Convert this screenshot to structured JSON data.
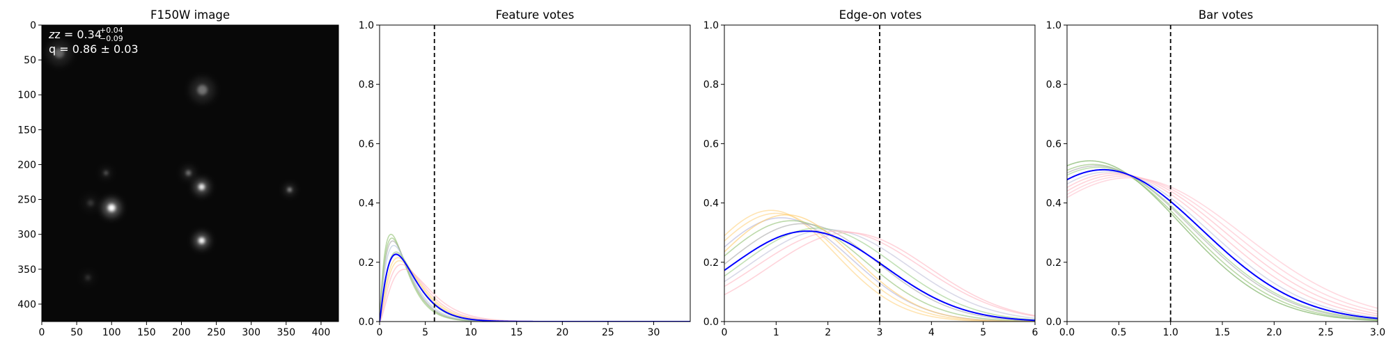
{
  "chart_data": [
    {
      "type": "image",
      "title": "F150W image",
      "annotation": {
        "z_main": "z = 0.34",
        "z_sup": "+0.04",
        "z_sub": "−0.09",
        "q_text": "q = 0.86 ± 0.03"
      },
      "xlim": [
        0,
        425
      ],
      "ylim": [
        425,
        0
      ],
      "x_ticks": [
        "0",
        "50",
        "100",
        "150",
        "200",
        "250",
        "300",
        "350",
        "400"
      ],
      "y_ticks": [
        "0",
        "50",
        "100",
        "150",
        "200",
        "250",
        "300",
        "350",
        "400"
      ],
      "sources": [
        {
          "x": 100,
          "y": 262,
          "brightness": 1.0,
          "size": 6
        },
        {
          "x": 229,
          "y": 232,
          "brightness": 0.9,
          "size": 5
        },
        {
          "x": 229,
          "y": 309,
          "brightness": 1.0,
          "size": 5
        },
        {
          "x": 355,
          "y": 236,
          "brightness": 0.65,
          "size": 3
        },
        {
          "x": 210,
          "y": 212,
          "brightness": 0.4,
          "size": 4
        },
        {
          "x": 92,
          "y": 212,
          "brightness": 0.35,
          "size": 3
        },
        {
          "x": 230,
          "y": 93,
          "brightness": 0.35,
          "size": 8
        },
        {
          "x": 25,
          "y": 40,
          "brightness": 0.3,
          "size": 8
        },
        {
          "x": 66,
          "y": 362,
          "brightness": 0.15,
          "size": 4
        },
        {
          "x": 70,
          "y": 255,
          "brightness": 0.15,
          "size": 5
        }
      ]
    },
    {
      "type": "line",
      "title": "Feature votes",
      "xlim": [
        0,
        34
      ],
      "ylim": [
        0,
        1.0
      ],
      "x_ticks": [
        0,
        5,
        10,
        15,
        20,
        25,
        30
      ],
      "y_ticks": [
        0.0,
        0.2,
        0.4,
        0.6,
        0.8,
        1.0
      ],
      "vline": 6,
      "model": "gamma",
      "mean": {
        "k": 2.2,
        "theta": 1.5,
        "color": "#0000ff"
      },
      "samples": [
        {
          "k": 2.0,
          "theta": 1.25,
          "color": "#8fbf6f"
        },
        {
          "k": 2.05,
          "theta": 1.28,
          "color": "#8fbf6f"
        },
        {
          "k": 2.1,
          "theta": 1.3,
          "color": "#a9a9a9"
        },
        {
          "k": 2.15,
          "theta": 1.35,
          "color": "#b0c4de"
        },
        {
          "k": 2.25,
          "theta": 1.45,
          "color": "#c0c0d8"
        },
        {
          "k": 2.35,
          "theta": 1.5,
          "color": "#ffd27f"
        },
        {
          "k": 2.4,
          "theta": 1.55,
          "color": "#ffd27f"
        },
        {
          "k": 2.5,
          "theta": 1.6,
          "color": "#ffb6c1"
        },
        {
          "k": 2.6,
          "theta": 1.7,
          "color": "#ffb6c1"
        },
        {
          "k": 2.3,
          "theta": 1.4,
          "color": "#9acd85"
        }
      ]
    },
    {
      "type": "line",
      "title": "Edge-on votes",
      "xlim": [
        0,
        6
      ],
      "ylim": [
        0,
        1.0
      ],
      "x_ticks": [
        0,
        1,
        2,
        3,
        4,
        5,
        6
      ],
      "y_ticks": [
        0.0,
        0.2,
        0.4,
        0.6,
        0.8,
        1.0
      ],
      "vline": 3,
      "model": "gauss",
      "mean": {
        "mu": 1.6,
        "sigma": 1.5,
        "peak": 0.305,
        "color": "#0000ff"
      },
      "samples": [
        {
          "mu": 0.9,
          "sigma": 1.25,
          "peak": 0.375,
          "color": "#ffd27f"
        },
        {
          "mu": 1.0,
          "sigma": 1.3,
          "peak": 0.365,
          "color": "#ffd27f"
        },
        {
          "mu": 1.1,
          "sigma": 1.35,
          "peak": 0.35,
          "color": "#b0b0d8"
        },
        {
          "mu": 1.3,
          "sigma": 1.4,
          "peak": 0.34,
          "color": "#8fbf6f"
        },
        {
          "mu": 1.5,
          "sigma": 1.45,
          "peak": 0.33,
          "color": "#a9a9a9"
        },
        {
          "mu": 1.8,
          "sigma": 1.5,
          "peak": 0.315,
          "color": "#9acd85"
        },
        {
          "mu": 2.0,
          "sigma": 1.55,
          "peak": 0.31,
          "color": "#c0c0d8"
        },
        {
          "mu": 2.2,
          "sigma": 1.6,
          "peak": 0.305,
          "color": "#ffb6c1"
        },
        {
          "mu": 2.4,
          "sigma": 1.55,
          "peak": 0.3,
          "color": "#ffb6c1"
        },
        {
          "mu": 1.2,
          "sigma": 1.3,
          "peak": 0.36,
          "color": "#ffc966"
        }
      ]
    },
    {
      "type": "line",
      "title": "Bar votes",
      "xlim": [
        0,
        3.0
      ],
      "ylim": [
        0,
        1.0
      ],
      "x_ticks": [
        0.0,
        0.5,
        1.0,
        1.5,
        2.0,
        2.5,
        3.0
      ],
      "y_ticks": [
        0.0,
        0.2,
        0.4,
        0.6,
        0.8,
        1.0
      ],
      "vline": 1.0,
      "model": "gauss",
      "mean": {
        "mu": 0.35,
        "sigma": 0.95,
        "peak": 0.512,
        "color": "#0000ff"
      },
      "samples": [
        {
          "mu": 0.22,
          "sigma": 0.88,
          "peak": 0.542,
          "color": "#6aa84f"
        },
        {
          "mu": 0.25,
          "sigma": 0.9,
          "peak": 0.53,
          "color": "#8fbf6f"
        },
        {
          "mu": 0.28,
          "sigma": 0.92,
          "peak": 0.525,
          "color": "#a9a9a9"
        },
        {
          "mu": 0.3,
          "sigma": 0.93,
          "peak": 0.52,
          "color": "#9acd85"
        },
        {
          "mu": 0.4,
          "sigma": 0.97,
          "peak": 0.505,
          "color": "#c0c0d8"
        },
        {
          "mu": 0.45,
          "sigma": 1.0,
          "peak": 0.5,
          "color": "#ffb6c1"
        },
        {
          "mu": 0.5,
          "sigma": 1.03,
          "peak": 0.495,
          "color": "#ffb6c1"
        },
        {
          "mu": 0.55,
          "sigma": 1.06,
          "peak": 0.49,
          "color": "#ffc0cb"
        },
        {
          "mu": 0.6,
          "sigma": 1.1,
          "peak": 0.485,
          "color": "#ffc0cb"
        }
      ]
    }
  ]
}
